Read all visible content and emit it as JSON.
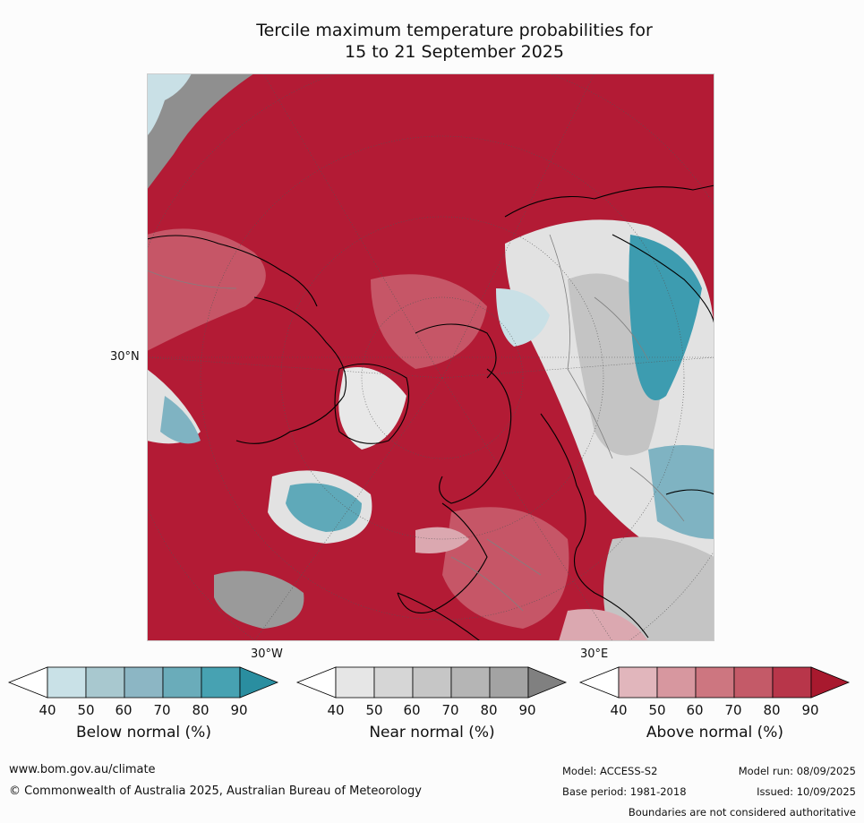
{
  "title_line1": "Tercile maximum temperature probabilities for",
  "title_line2": "15 to 21 September 2025",
  "map": {
    "lat_label": "30°N",
    "lon_labels": [
      "30°W",
      "30°E"
    ],
    "colors": {
      "above_max": "#b31b35",
      "above_mid": "#c65667",
      "above_low": "#dba8b0",
      "near_light": "#e2e2e2",
      "near_mid": "#c4c4c4",
      "near_dark": "#8f8f8f",
      "below_light": "#c9e0e6",
      "below_mid": "#7fb3c2",
      "below_dark": "#3d9cb0",
      "coast": "#000000",
      "borders": "#808080"
    }
  },
  "colorbars": [
    {
      "label": "Below normal (%)",
      "ticks": [
        "40",
        "50",
        "60",
        "70",
        "80",
        "90"
      ],
      "colors": [
        "#ffffff",
        "#c9e1e7",
        "#a8c8cf",
        "#8cb6c4",
        "#6aacba",
        "#47a2b2",
        "#2a8ea0"
      ]
    },
    {
      "label": "Near normal (%)",
      "ticks": [
        "40",
        "50",
        "60",
        "70",
        "80",
        "90"
      ],
      "colors": [
        "#ffffff",
        "#e6e6e6",
        "#d6d6d6",
        "#c6c6c6",
        "#b5b5b5",
        "#a3a3a3",
        "#808080"
      ]
    },
    {
      "label": "Above normal (%)",
      "ticks": [
        "40",
        "50",
        "60",
        "70",
        "80",
        "90"
      ],
      "colors": [
        "#ffffff",
        "#e1b6bc",
        "#d7979f",
        "#cd7680",
        "#c45a68",
        "#b8364a",
        "#a8192e"
      ]
    }
  ],
  "footer": {
    "website": "www.bom.gov.au/climate",
    "copyright": "© Commonwealth of Australia 2025, Australian Bureau of Meteorology",
    "model": "Model: ACCESS-S2",
    "base_period": "Base period: 1981-2018",
    "model_run": "Model run: 08/09/2025",
    "issued": "Issued: 10/09/2025",
    "disclaimer": "Boundaries are not considered authoritative"
  }
}
